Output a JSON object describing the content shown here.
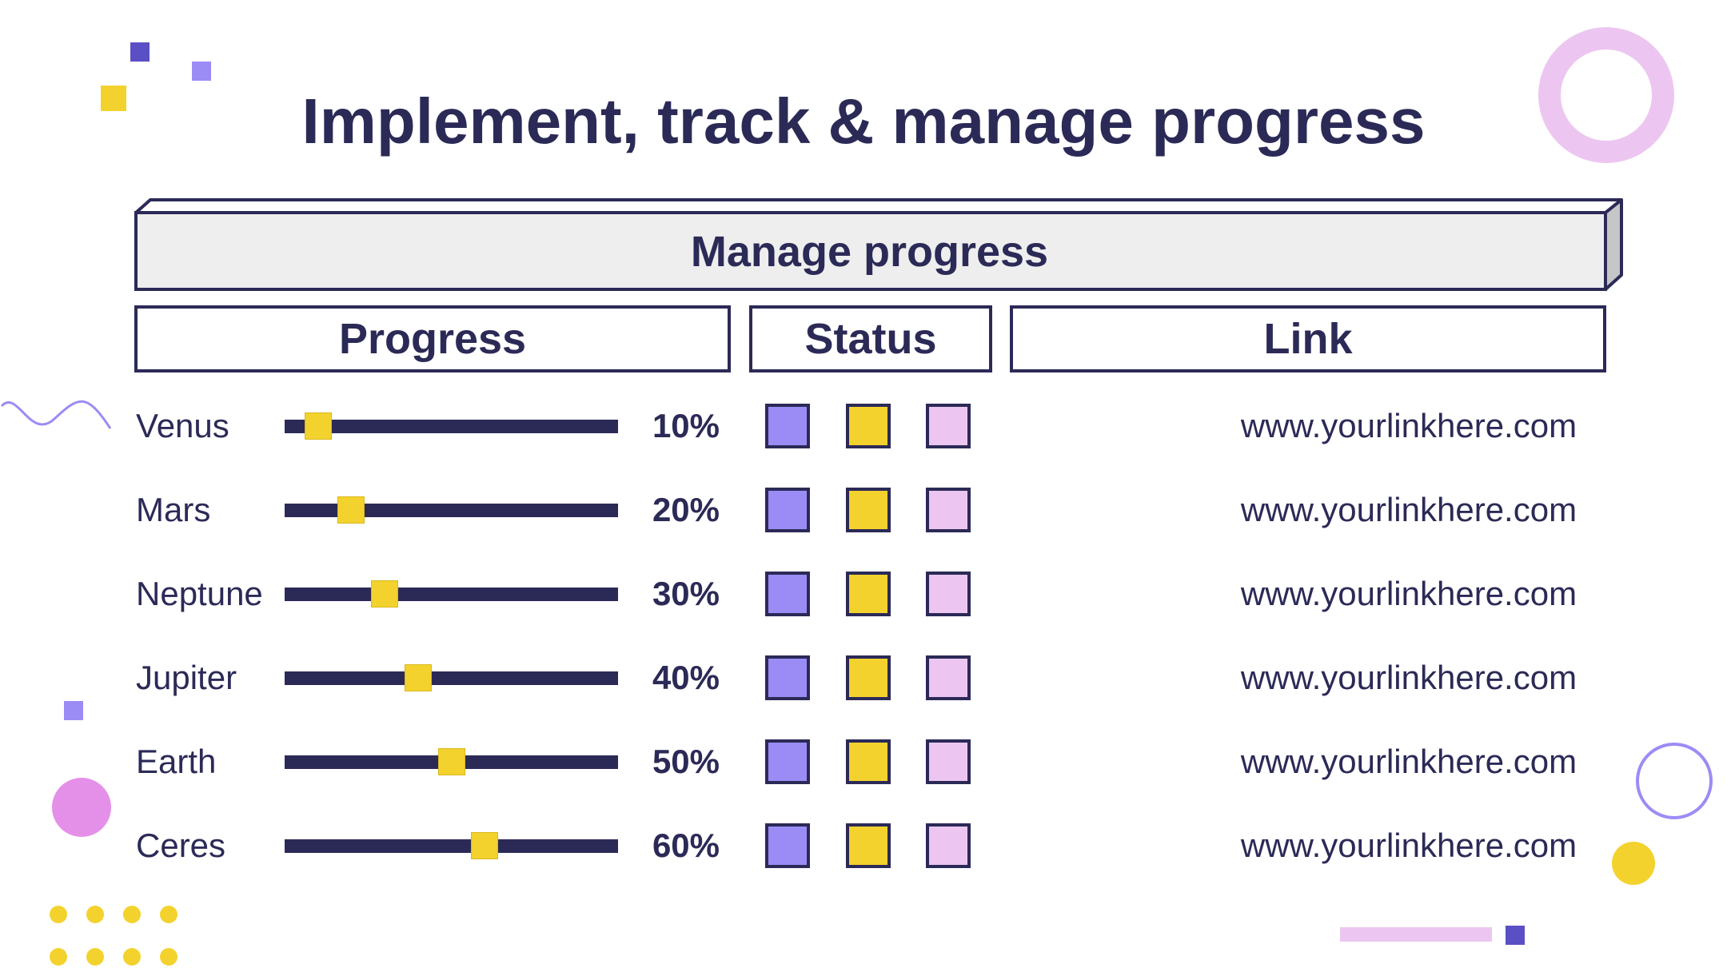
{
  "title": "Implement, track & manage progress",
  "banner": {
    "label": "Manage progress"
  },
  "columns": {
    "progress": "Progress",
    "status": "Status",
    "link": "Link"
  },
  "colors": {
    "navy": "#2b2a57",
    "status_purple": "#9b8cf5",
    "status_yellow": "#f3d22e",
    "status_pink": "#ecc6f0",
    "knob_yellow": "#f3d22e"
  },
  "rows": [
    {
      "name": "Venus",
      "progress": 0.1,
      "percent_label": "10%",
      "link": "www.yourlinkhere.com"
    },
    {
      "name": "Mars",
      "progress": 0.2,
      "percent_label": "20%",
      "link": "www.yourlinkhere.com"
    },
    {
      "name": "Neptune",
      "progress": 0.3,
      "percent_label": "30%",
      "link": "www.yourlinkhere.com"
    },
    {
      "name": "Jupiter",
      "progress": 0.4,
      "percent_label": "40%",
      "link": "www.yourlinkhere.com"
    },
    {
      "name": "Earth",
      "progress": 0.5,
      "percent_label": "50%",
      "link": "www.yourlinkhere.com"
    },
    {
      "name": "Ceres",
      "progress": 0.6,
      "percent_label": "60%",
      "link": "www.yourlinkhere.com"
    }
  ]
}
